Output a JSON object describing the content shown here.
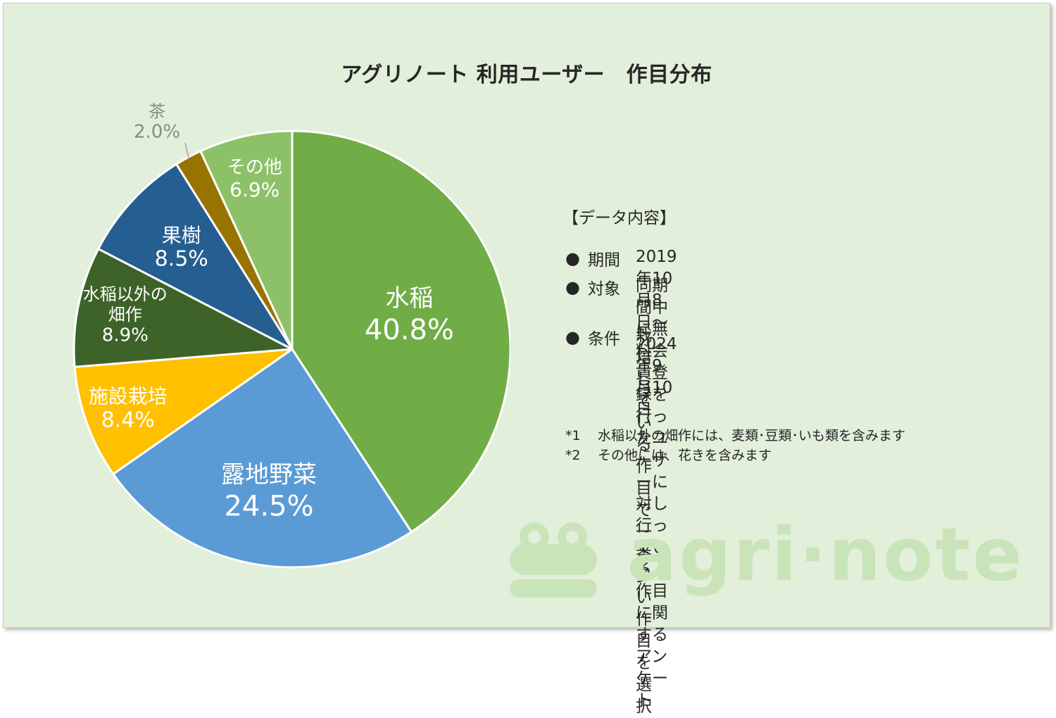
{
  "title": "アグリノート 利用ユーザー　作目分布",
  "chart_data": {
    "type": "pie",
    "title": "アグリノート 利用ユーザー　作目分布",
    "start_angle_deg": 0,
    "direction": "clockwise",
    "slices": [
      {
        "name": "水稲",
        "value": 40.8,
        "label": "40.8%",
        "color": "#70ad47"
      },
      {
        "name": "露地野菜",
        "value": 24.5,
        "label": "24.5%",
        "color": "#5b9bd5"
      },
      {
        "name": "施設栽培",
        "value": 8.4,
        "label": "8.4%",
        "color": "#ffc000"
      },
      {
        "name": "水稲以外の\n畑作",
        "value": 8.9,
        "label": "8.9%",
        "color": "#3d6329"
      },
      {
        "name": "果樹",
        "value": 8.5,
        "label": "8.5%",
        "color": "#255e91"
      },
      {
        "name": "茶",
        "value": 2.0,
        "label": "2.0%",
        "color": "#997300"
      },
      {
        "name": "その他",
        "value": 6.9,
        "label": "6.9%",
        "color": "#8cc168"
      }
    ]
  },
  "info": {
    "heading": "【データ内容】",
    "items": [
      {
        "label": "期間",
        "text": "2019年10月8日～2024年9月10日"
      },
      {
        "label": "対象",
        "text": "同期間中に無料会員登録を行ったユーザーに\n対し行っている、作目に関するアンケート"
      },
      {
        "label": "条件",
        "text": "栽培している作目で一番多い作目を選択"
      }
    ]
  },
  "notes": [
    {
      "mark": "*1",
      "text": "水稲以外の畑作には、麦類･豆類･いも類を含みます"
    },
    {
      "mark": "*2",
      "text": "その他には、花きを含みます"
    }
  ],
  "watermark": {
    "text": "agri·note",
    "color": "#c9e4b9"
  }
}
